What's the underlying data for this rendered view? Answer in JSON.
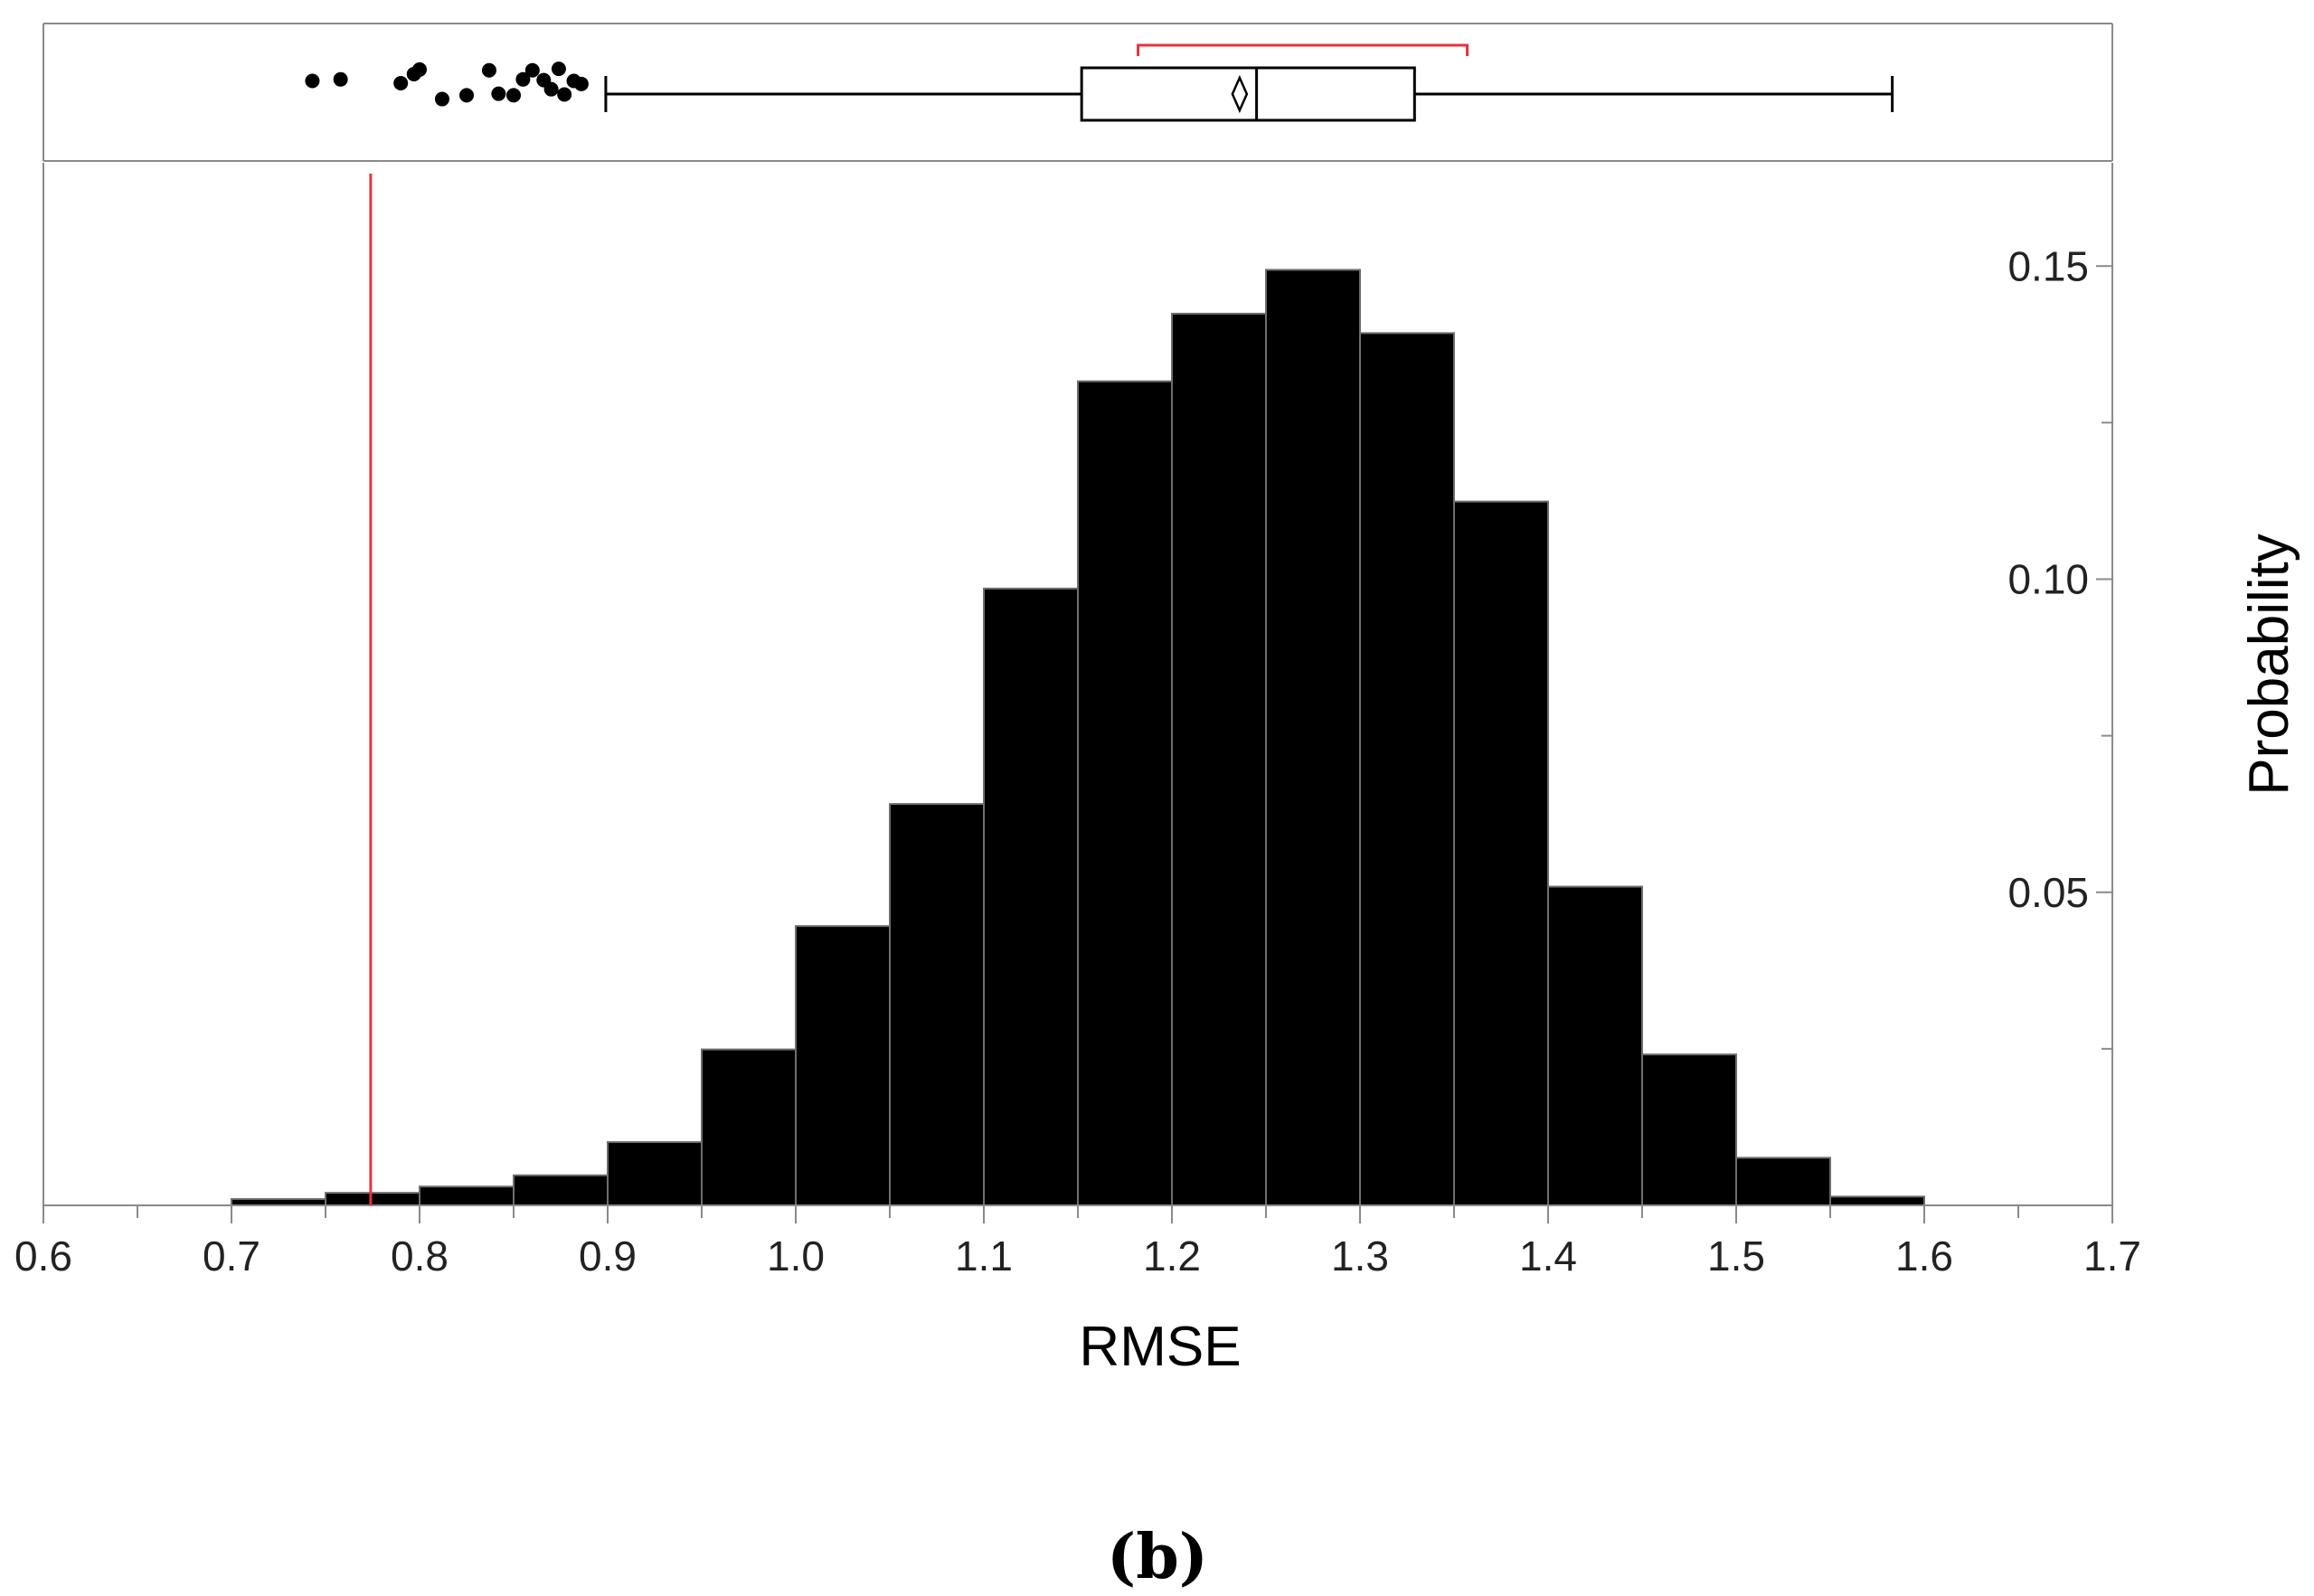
{
  "chart_data": {
    "type": "bar",
    "title": "",
    "panel_label": "(b)",
    "xlabel": "RMSE",
    "ylabel": "Probability",
    "xlim": [
      0.6,
      1.7
    ],
    "ylim": [
      0,
      0.1665
    ],
    "x_ticks": [
      "0.6",
      "0.7",
      "0.8",
      "0.9",
      "1.0",
      "1.1",
      "1.2",
      "1.3",
      "1.4",
      "1.5",
      "1.6",
      "1.7"
    ],
    "y_ticks": [
      "0.05",
      "0.10",
      "0.15"
    ],
    "y_minor_ticks": [
      0.025,
      0.075,
      0.125
    ],
    "bin_width": 0.05,
    "bin_starts": [
      0.7,
      0.75,
      0.8,
      0.85,
      0.9,
      0.95,
      1.0,
      1.05,
      1.1,
      1.15,
      1.2,
      1.25,
      1.3,
      1.35,
      1.4,
      1.45,
      1.5,
      1.55
    ],
    "values": [
      0.001,
      0.002,
      0.003,
      0.0048,
      0.0101,
      0.0249,
      0.0446,
      0.0641,
      0.0985,
      0.1316,
      0.1424,
      0.1494,
      0.1393,
      0.1124,
      0.0509,
      0.0241,
      0.0076,
      0.0014
    ],
    "bar_color": "#000000",
    "bar_edge_color": "#6e6e6e",
    "reference_line": {
      "x": 0.774,
      "color": "#e8323c"
    },
    "boxplot": {
      "whisker_low": 0.899,
      "q1": 1.152,
      "median": 1.245,
      "q3": 1.329,
      "whisker_high": 1.583,
      "mean": 1.236,
      "shortest_half": [
        1.182,
        1.357
      ],
      "shortest_half_color": "#e8323c",
      "outliers": [
        {
          "x": 0.743,
          "y": 0.52
        },
        {
          "x": 0.758,
          "y": 0.5
        },
        {
          "x": 0.79,
          "y": 0.55
        },
        {
          "x": 0.797,
          "y": 0.43
        },
        {
          "x": 0.8,
          "y": 0.37
        },
        {
          "x": 0.812,
          "y": 0.76
        },
        {
          "x": 0.825,
          "y": 0.71
        },
        {
          "x": 0.837,
          "y": 0.38
        },
        {
          "x": 0.842,
          "y": 0.69
        },
        {
          "x": 0.85,
          "y": 0.71
        },
        {
          "x": 0.855,
          "y": 0.5
        },
        {
          "x": 0.86,
          "y": 0.38
        },
        {
          "x": 0.866,
          "y": 0.51
        },
        {
          "x": 0.87,
          "y": 0.63
        },
        {
          "x": 0.874,
          "y": 0.36
        },
        {
          "x": 0.877,
          "y": 0.7
        },
        {
          "x": 0.882,
          "y": 0.52
        },
        {
          "x": 0.886,
          "y": 0.56
        }
      ]
    },
    "grid": false
  }
}
